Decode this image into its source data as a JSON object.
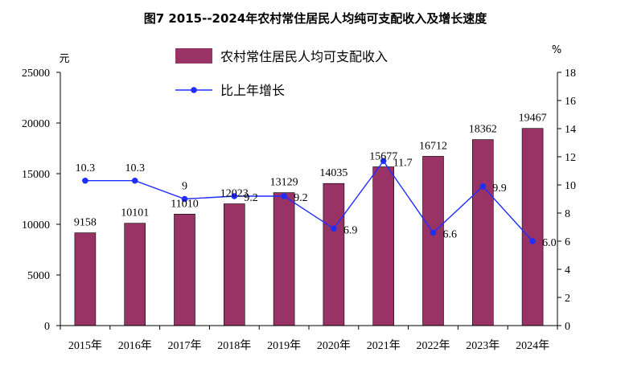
{
  "chart_data": {
    "type": "bar+line",
    "title": "图7 2015--2024年农村常住居民人均纯可支配收入及增长速度",
    "categories": [
      "2015年",
      "2016年",
      "2017年",
      "2018年",
      "2019年",
      "2020年",
      "2021年",
      "2022年",
      "2023年",
      "2024年"
    ],
    "series": [
      {
        "name": "农村常住居民人均可支配收入",
        "type": "bar",
        "axis": "left",
        "color": "#993366",
        "values": [
          9158,
          10101,
          11010,
          12023,
          13129,
          14035,
          15677,
          16712,
          18362,
          19467
        ],
        "labels": [
          "9158",
          "10101",
          "11010",
          "12023",
          "13129",
          "14035",
          "15677",
          "16712",
          "18362",
          "19467"
        ]
      },
      {
        "name": "比上年增长",
        "type": "line",
        "axis": "right",
        "color": "#1f2dff",
        "values": [
          10.3,
          10.3,
          9.0,
          9.2,
          9.2,
          6.9,
          11.7,
          6.6,
          9.9,
          6.0
        ],
        "labels": [
          "10.3",
          "10.3",
          "9",
          "9.2",
          "9.2",
          "6.9",
          "11.7",
          "6.6",
          "9.9",
          "6.0"
        ]
      }
    ],
    "y_left": {
      "unit": "元",
      "range": [
        0,
        25000
      ],
      "ticks": [
        0,
        5000,
        10000,
        15000,
        20000,
        25000
      ]
    },
    "y_right": {
      "unit": "%",
      "range": [
        0,
        18
      ],
      "ticks": [
        0,
        2,
        4,
        6,
        8,
        10,
        12,
        14,
        16,
        18
      ]
    },
    "grid": false,
    "legend_position": "top"
  }
}
